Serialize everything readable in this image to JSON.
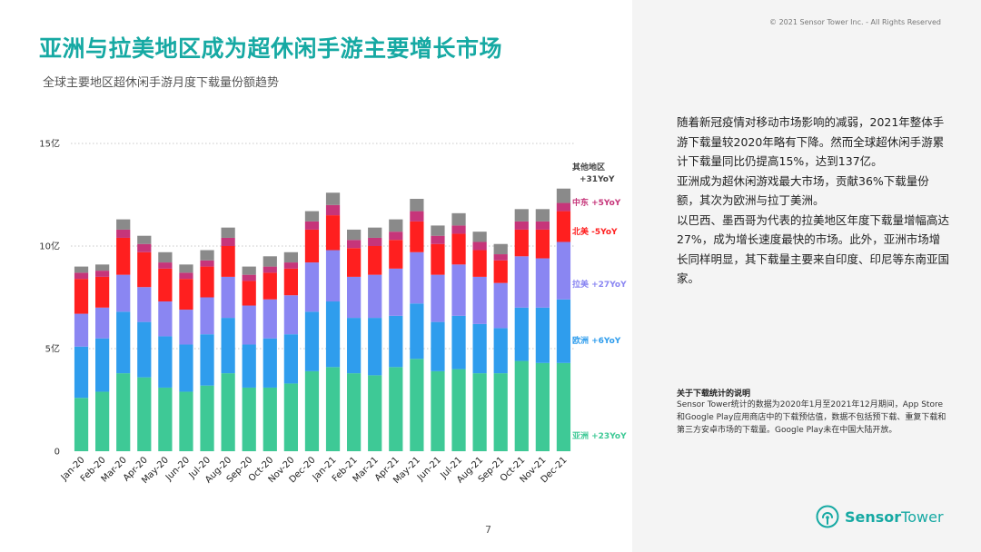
{
  "header": {
    "title": "亚洲与拉美地区成为超休闲手游主要增长市场",
    "subtitle": "全球主要地区超休闲手游月度下载量份额趋势"
  },
  "page_number": "7",
  "copyright": "© 2021 Sensor Tower Inc. - All Rights Reserved",
  "body_paragraphs": [
    "随着新冠疫情对移动市场影响的减弱，2021年整体手游下载量较2020年略有下降。然而全球超休闲手游累计下载量同比仍提高15%，达到137亿。",
    "亚洲成为超休闲游戏最大市场，贡献36%下载量份额，其次为欧洲与拉丁美洲。",
    "以巴西、墨西哥为代表的拉美地区年度下载量增幅高达27%，成为增长速度最快的市场。此外，亚洲市场增长同样明显，其下载量主要来自印度、印尼等东南亚国家。"
  ],
  "note": {
    "title": "关于下载统计的说明",
    "text": "Sensor Tower统计的数据为2020年1月至2021年12月期间，App Store和Google Play应用商店中的下载预估值，数据不包括预下载、重复下载和第三方安卓市场的下载量。Google Play未在中国大陆开放。"
  },
  "logo": {
    "name_bold": "Sensor",
    "name_light": "Tower",
    "icon": "sensor-tower-logo-icon"
  },
  "colors": {
    "teal": "#16a9a3",
    "asia": "#3ec996",
    "europe": "#2f9ded",
    "latam": "#8a86f2",
    "na": "#ff1f1f",
    "me": "#c6357a",
    "other": "#8a8a8a"
  },
  "chart_data": {
    "type": "bar",
    "stacked": true,
    "categories": [
      "Jan-20",
      "Feb-20",
      "Mar-20",
      "Apr-20",
      "May-20",
      "Jun-20",
      "Jul-20",
      "Aug-20",
      "Sep-20",
      "Oct-20",
      "Nov-20",
      "Dec-20",
      "Jan-21",
      "Feb-21",
      "Mar-21",
      "Apr-21",
      "May-21",
      "Jun-21",
      "Jul-21",
      "Aug-21",
      "Sep-21",
      "Oct-21",
      "Nov-21",
      "Dec-21"
    ],
    "y_ticks": [
      {
        "value": 0,
        "label": "0"
      },
      {
        "value": 5,
        "label": "5亿"
      },
      {
        "value": 10,
        "label": "10亿"
      },
      {
        "value": 15,
        "label": "15亿"
      }
    ],
    "ylim": [
      0,
      15
    ],
    "gridlines": true,
    "legend_position": "right-inline",
    "series": [
      {
        "name": "亚洲",
        "label": "亚洲 +23YoY",
        "color": "#3ec996",
        "values": [
          2.6,
          2.9,
          3.8,
          3.6,
          3.1,
          2.9,
          3.2,
          3.8,
          3.1,
          3.1,
          3.3,
          3.9,
          4.1,
          3.8,
          3.7,
          4.1,
          4.5,
          3.9,
          4.0,
          3.8,
          3.8,
          4.4,
          4.3,
          4.3
        ]
      },
      {
        "name": "欧洲",
        "label": "欧洲 +6YoY",
        "color": "#2f9ded",
        "values": [
          2.5,
          2.6,
          3.0,
          2.7,
          2.5,
          2.3,
          2.5,
          2.7,
          2.1,
          2.4,
          2.4,
          2.9,
          3.2,
          2.7,
          2.8,
          2.5,
          2.7,
          2.4,
          2.6,
          2.4,
          2.2,
          2.6,
          2.7,
          3.1
        ]
      },
      {
        "name": "拉美",
        "label": "拉美 +27YoY",
        "color": "#8a86f2",
        "values": [
          1.6,
          1.5,
          1.8,
          1.7,
          1.7,
          1.7,
          1.8,
          2.0,
          1.9,
          1.9,
          1.9,
          2.4,
          2.5,
          2.0,
          2.1,
          2.3,
          2.5,
          2.3,
          2.5,
          2.3,
          2.2,
          2.5,
          2.4,
          2.8
        ]
      },
      {
        "name": "北美",
        "label": "北美 -5YoY",
        "color": "#ff1f1f",
        "values": [
          1.7,
          1.5,
          1.8,
          1.7,
          1.6,
          1.5,
          1.5,
          1.5,
          1.2,
          1.3,
          1.3,
          1.6,
          1.7,
          1.4,
          1.4,
          1.4,
          1.5,
          1.5,
          1.5,
          1.3,
          1.1,
          1.3,
          1.4,
          1.5
        ]
      },
      {
        "name": "中东",
        "label": "中东 +5YoY",
        "color": "#c6357a",
        "values": [
          0.3,
          0.3,
          0.4,
          0.4,
          0.3,
          0.3,
          0.3,
          0.4,
          0.3,
          0.3,
          0.3,
          0.4,
          0.5,
          0.4,
          0.4,
          0.4,
          0.5,
          0.4,
          0.4,
          0.4,
          0.3,
          0.4,
          0.4,
          0.4
        ]
      },
      {
        "name": "其他地区",
        "label": "其他地区 +31YoY",
        "color": "#8a8a8a",
        "values": [
          0.3,
          0.3,
          0.5,
          0.4,
          0.5,
          0.4,
          0.5,
          0.5,
          0.4,
          0.5,
          0.5,
          0.5,
          0.6,
          0.5,
          0.5,
          0.6,
          0.6,
          0.5,
          0.6,
          0.5,
          0.5,
          0.6,
          0.6,
          0.7
        ]
      }
    ]
  }
}
